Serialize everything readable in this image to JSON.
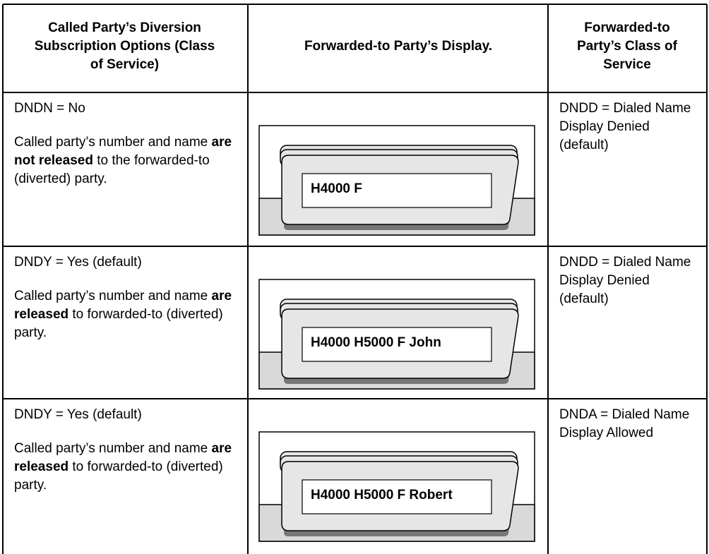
{
  "table": {
    "headers": [
      "Called Party’s Diversion Subscription Options (Class of Service)",
      "Forwarded-to Party’s Display.",
      "Forwarded-to Party’s Class of Service"
    ],
    "rows": [
      {
        "option": "DNDN = No",
        "description": [
          {
            "text": "Called party’s number and name "
          },
          {
            "text": "are not released",
            "bold": true
          },
          {
            "text": " to the forwarded-to (diverted) party."
          }
        ],
        "display": "H4000 F",
        "class_of_service": "DNDD = Dialed Name Display Denied (default)"
      },
      {
        "option": "DNDY = Yes (default)",
        "description": [
          {
            "text": "Called party’s number and name "
          },
          {
            "text": "are released",
            "bold": true
          },
          {
            "text": " to forwarded-to (diverted) party."
          }
        ],
        "display": "H4000 H5000 F John",
        "class_of_service": "DNDD = Dialed Name Display Denied (default)"
      },
      {
        "option": "DNDY = Yes (default)",
        "description": [
          {
            "text": "Called party’s number and name "
          },
          {
            "text": "are released",
            "bold": true
          },
          {
            "text": " to forwarded-to (diverted) party."
          }
        ],
        "display": "H4000 H5000 F Robert",
        "class_of_service": "DNDA = Dialed Name Display Allowed"
      }
    ]
  }
}
